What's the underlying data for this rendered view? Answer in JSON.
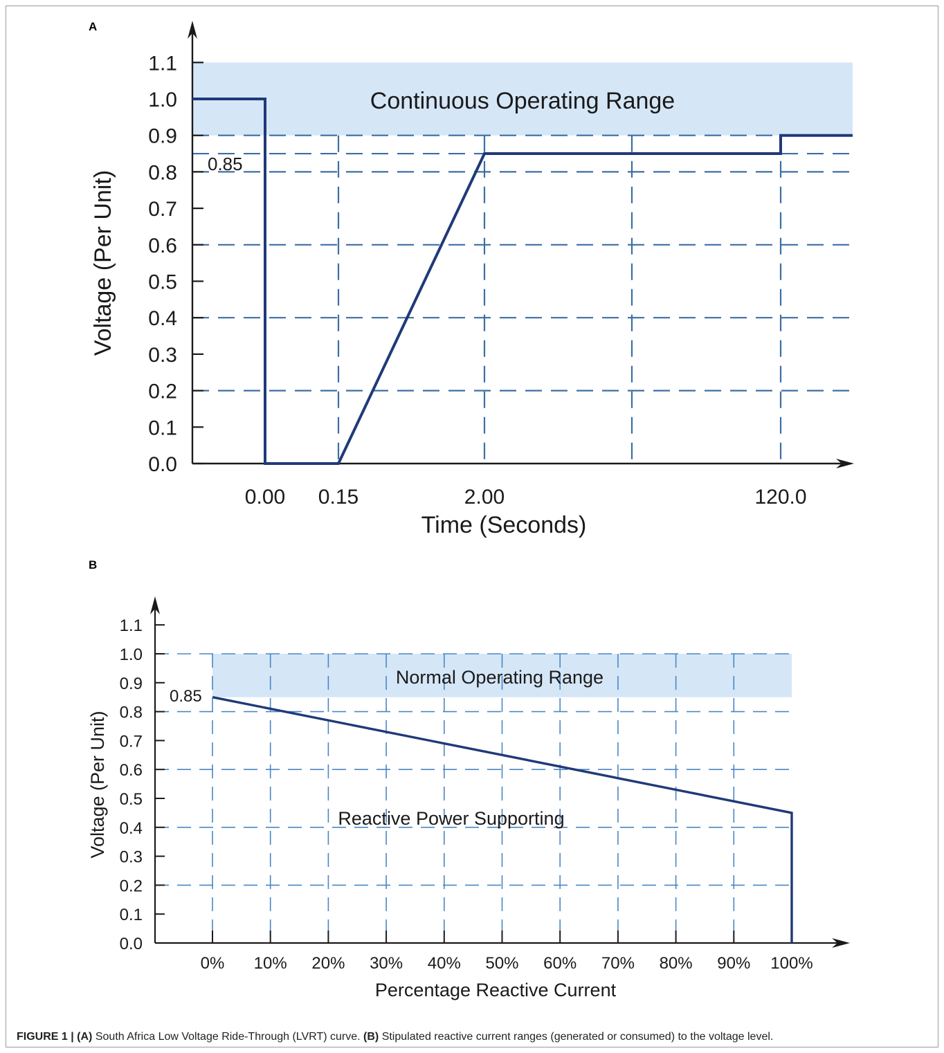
{
  "caption": {
    "lead": "FIGURE 1 |",
    "a_tag": "(A)",
    "a_text": "South Africa Low Voltage Ride-Through (LVRT) curve.",
    "b_tag": "(B)",
    "b_text": "Stipulated reactive current ranges (generated or consumed) to the voltage level."
  },
  "colors": {
    "curve": "#1f3a78",
    "grid": "#3b6fa3",
    "band": "#d5e6f7",
    "axis": "#1a1a1a"
  },
  "chart_data": [
    {
      "panel": "A",
      "type": "line",
      "xlabel": "Time (Seconds)",
      "ylabel": "Voltage (Per Unit)",
      "x_tick_labels": [
        "0.00",
        "0.15",
        "2.00",
        "120.0"
      ],
      "y_tick_labels": [
        "0.0",
        "0.1",
        "0.2",
        "0.3",
        "0.4",
        "0.5",
        "0.6",
        "0.7",
        "0.8",
        "0.9",
        "1.0",
        "1.1"
      ],
      "ylim": [
        0,
        1.1
      ],
      "x_scale": "non-linear (breakpoint ticks)",
      "grid": "dashed at selected levels",
      "band": {
        "label": "Continuous Operating Range",
        "y_range": [
          0.9,
          1.1
        ]
      },
      "annotations": [
        {
          "text": "0.85",
          "y": 0.85
        }
      ],
      "series": [
        {
          "points": [
            {
              "x": "before 0.00",
              "y": 1.0
            },
            {
              "x": "0.00",
              "y": 1.0
            },
            {
              "x": "0.00",
              "y": 0.0
            },
            {
              "x": "0.15",
              "y": 0.0
            },
            {
              "x": "2.00",
              "y": 0.85
            },
            {
              "x": "120.0",
              "y": 0.85
            },
            {
              "x": "120.0",
              "y": 0.9
            },
            {
              "x": "after 120.0",
              "y": 0.9
            }
          ]
        }
      ]
    },
    {
      "panel": "B",
      "type": "line",
      "xlabel": "Percentage Reactive Current",
      "ylabel": "Voltage (Per Unit)",
      "x_tick_labels": [
        "0%",
        "10%",
        "20%",
        "30%",
        "40%",
        "50%",
        "60%",
        "70%",
        "80%",
        "90%",
        "100%"
      ],
      "y_tick_labels": [
        "0.0",
        "0.1",
        "0.2",
        "0.3",
        "0.4",
        "0.5",
        "0.6",
        "0.7",
        "0.8",
        "0.9",
        "1.0",
        "1.1"
      ],
      "xlim": [
        0,
        100
      ],
      "ylim": [
        0,
        1.1
      ],
      "grid": "dashed",
      "band": {
        "label": "Normal Operating Range",
        "y_range": [
          0.85,
          1.0
        ],
        "x_range": [
          0,
          100
        ]
      },
      "annotations": [
        {
          "text": "0.85",
          "y": 0.85
        },
        {
          "text": "Reactive Power Supporting"
        }
      ],
      "series": [
        {
          "points": [
            {
              "x": 0,
              "y": 0.85
            },
            {
              "x": 100,
              "y": 0.45
            },
            {
              "x": 100,
              "y": 0.0
            }
          ]
        }
      ]
    }
  ]
}
